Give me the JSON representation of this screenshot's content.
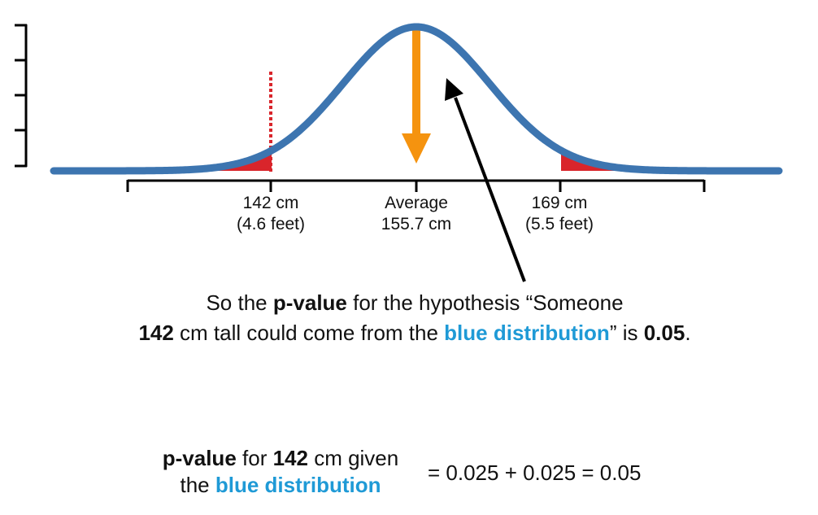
{
  "colors": {
    "curve": "#3d75b0",
    "tail_fill": "#d9252b",
    "threshold_line": "#d9252b",
    "average_arrow": "#f5930f",
    "pointer_arrow": "#000000",
    "axis": "#000000",
    "highlight_text": "#1f9ad6"
  },
  "axis_labels": {
    "left": {
      "line1": "142 cm",
      "line2": "(4.6 feet)"
    },
    "center": {
      "line1": "Average",
      "line2": "155.7 cm"
    },
    "right": {
      "line1": "169 cm",
      "line2": "(5.5 feet)"
    }
  },
  "caption": {
    "part1": "So the ",
    "part2": "p-value",
    "part3": " for the hypothesis “Someone ",
    "part4": "142",
    "part5": " cm tall could come from the ",
    "part6": "blue distribution",
    "part7": "” is ",
    "part8": "0.05",
    "part9": "."
  },
  "formula": {
    "left_part1": "p-value",
    "left_part2": " for ",
    "left_part3": "142",
    "left_part4": " cm given",
    "left_part5": "the ",
    "left_part6": "blue distribution",
    "right": "= 0.025 + 0.025 = 0.05"
  }
}
